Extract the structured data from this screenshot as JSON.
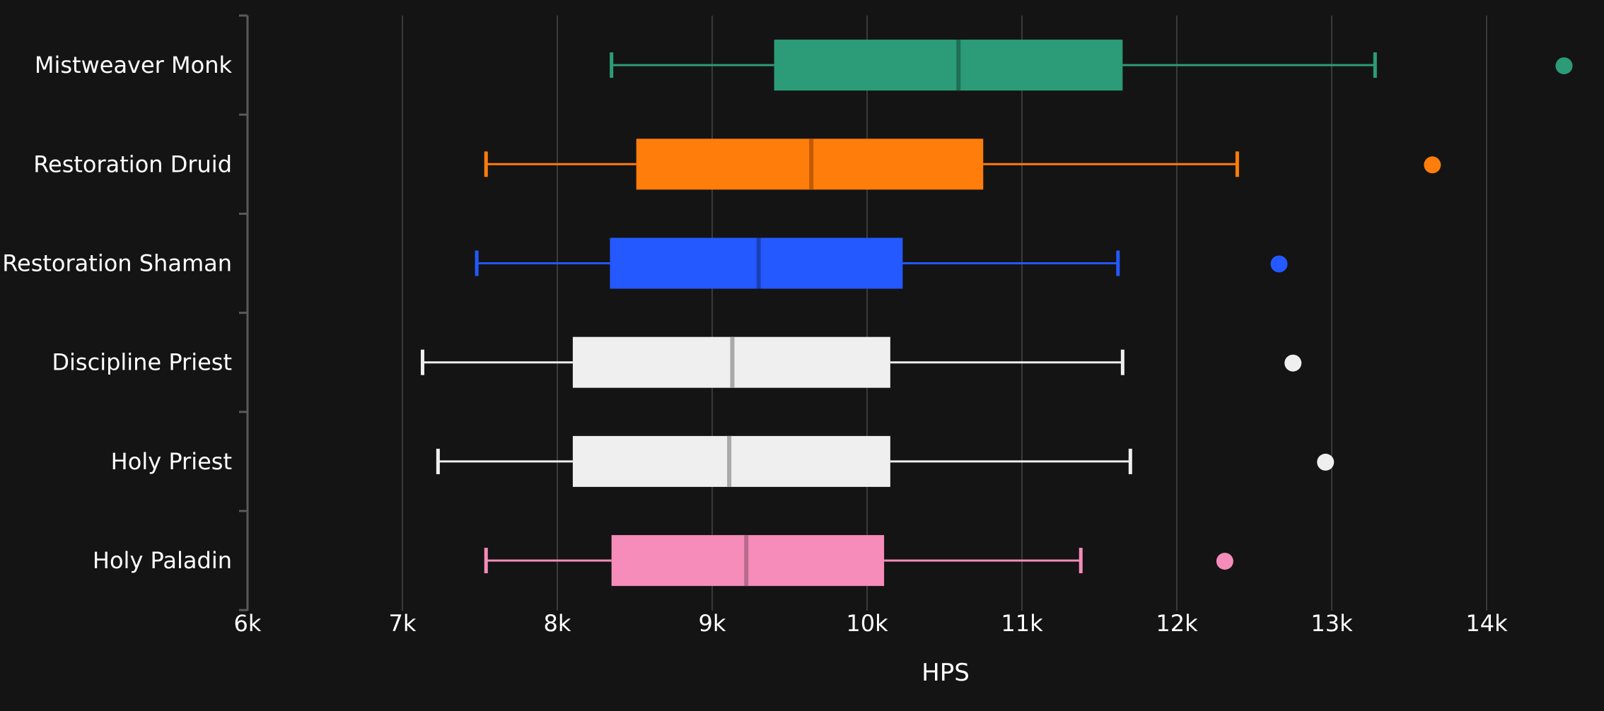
{
  "chart_data": {
    "type": "boxplot",
    "orientation": "horizontal",
    "title": "",
    "xlabel": "HPS",
    "ylabel": "",
    "xlim": [
      6000,
      14500
    ],
    "x_ticks": [
      {
        "value": 6000,
        "label": "6k"
      },
      {
        "value": 7000,
        "label": "7k"
      },
      {
        "value": 8000,
        "label": "8k"
      },
      {
        "value": 9000,
        "label": "9k"
      },
      {
        "value": 10000,
        "label": "10k"
      },
      {
        "value": 11000,
        "label": "11k"
      },
      {
        "value": 12000,
        "label": "12k"
      },
      {
        "value": 13000,
        "label": "13k"
      },
      {
        "value": 14000,
        "label": "14k"
      }
    ],
    "grid": "vertical",
    "series": [
      {
        "category": "Mistweaver Monk",
        "color": "#2c9c78",
        "median_color": "#1f6e55",
        "min": 8350,
        "q1": 9400,
        "median": 10590,
        "q3": 11650,
        "max": 13280,
        "outliers": [
          14500
        ]
      },
      {
        "category": "Restoration Druid",
        "color": "#ff7d0a",
        "median_color": "#c25a05",
        "min": 7540,
        "q1": 8510,
        "median": 9640,
        "q3": 10750,
        "max": 12390,
        "outliers": [
          13650
        ]
      },
      {
        "category": "Restoration Shaman",
        "color": "#2459ff",
        "median_color": "#1a40b8",
        "min": 7480,
        "q1": 8340,
        "median": 9300,
        "q3": 10230,
        "max": 11620,
        "outliers": [
          12660
        ]
      },
      {
        "category": "Discipline Priest",
        "color": "#efefef",
        "median_color": "#aaaaaa",
        "min": 7130,
        "q1": 8100,
        "median": 9130,
        "q3": 10150,
        "max": 11650,
        "outliers": [
          12750
        ]
      },
      {
        "category": "Holy Priest",
        "color": "#efefef",
        "median_color": "#aaaaaa",
        "min": 7230,
        "q1": 8100,
        "median": 9110,
        "q3": 10150,
        "max": 11700,
        "outliers": [
          12960
        ]
      },
      {
        "category": "Holy Paladin",
        "color": "#f58cba",
        "median_color": "#b96a8c",
        "min": 7540,
        "q1": 8350,
        "median": 9220,
        "q3": 10110,
        "max": 11380,
        "outliers": [
          12310
        ]
      }
    ],
    "colors": {
      "background": "#141414",
      "grid": "#3a3a3a",
      "axis": "#5a5a5a",
      "text": "#ffffff"
    }
  }
}
